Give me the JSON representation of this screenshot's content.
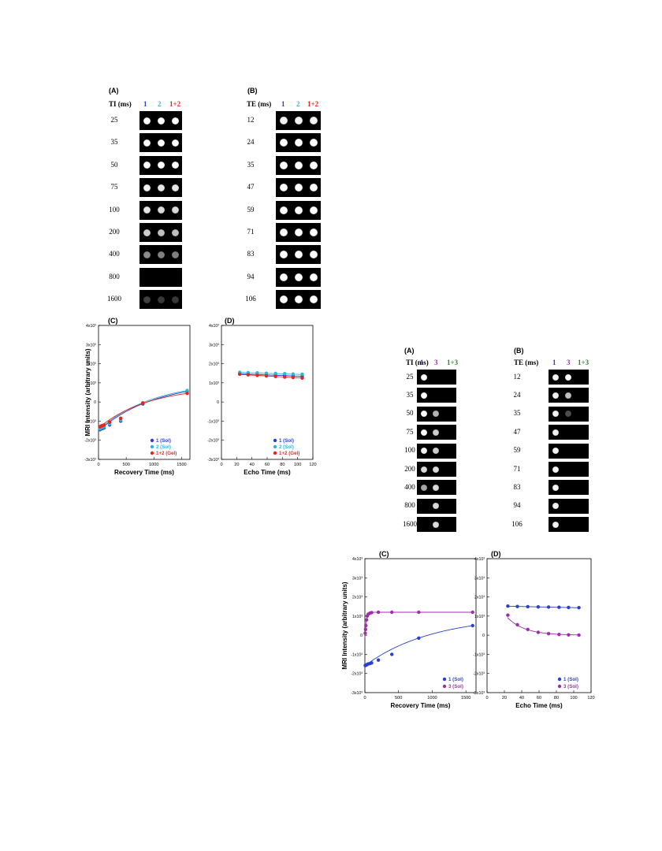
{
  "top_figure": {
    "panel_a": {
      "letter": "(A)",
      "row_header": "TI (ms)",
      "col_labels": [
        "1",
        "2",
        "1+2"
      ],
      "col_colors": [
        "#2b3fd0",
        "#2fb5d8",
        "#e8241c"
      ],
      "rows": [
        "25",
        "35",
        "50",
        "75",
        "100",
        "200",
        "400",
        "800",
        "1600"
      ],
      "spot_intensity": [
        [
          1.0,
          1.0,
          1.0
        ],
        [
          1.0,
          1.0,
          1.0
        ],
        [
          1.0,
          1.0,
          1.0
        ],
        [
          0.95,
          0.9,
          0.9
        ],
        [
          0.9,
          0.85,
          0.85
        ],
        [
          0.8,
          0.75,
          0.75
        ],
        [
          0.55,
          0.5,
          0.5
        ],
        [
          0.0,
          0.0,
          0.0
        ],
        [
          0.25,
          0.22,
          0.22
        ]
      ]
    },
    "panel_b": {
      "letter": "(B)",
      "row_header": "TE (ms)",
      "col_labels": [
        "1",
        "2",
        "1+2"
      ],
      "col_colors": [
        "#2b3fd0",
        "#2fb5d8",
        "#e8241c"
      ],
      "rows": [
        "12",
        "24",
        "35",
        "47",
        "59",
        "71",
        "83",
        "94",
        "106"
      ],
      "spot_intensity": [
        [
          0.95,
          0.95,
          0.95
        ],
        [
          1.0,
          1.0,
          1.0
        ],
        [
          1.0,
          1.0,
          1.0
        ],
        [
          1.0,
          1.0,
          1.0
        ],
        [
          1.0,
          1.0,
          1.0
        ],
        [
          1.0,
          1.0,
          1.0
        ],
        [
          1.0,
          1.0,
          1.0
        ],
        [
          1.0,
          1.0,
          1.0
        ],
        [
          1.0,
          1.0,
          1.0
        ]
      ]
    },
    "panel_c_letter": "(C)",
    "panel_d_letter": "(D)"
  },
  "bottom_figure": {
    "panel_a": {
      "letter": "(A)",
      "row_header": "TI (ms)",
      "col_labels": [
        "1",
        "3",
        "1+3"
      ],
      "col_colors": [
        "#2b3fd0",
        "#9b30a8",
        "#2e8b2e"
      ],
      "rows": [
        "25",
        "35",
        "50",
        "75",
        "100",
        "200",
        "400",
        "800",
        "1600"
      ],
      "spot_intensity": [
        [
          1.0,
          0.0,
          0.0
        ],
        [
          1.0,
          0.0,
          0.0
        ],
        [
          1.0,
          0.7,
          0.0
        ],
        [
          1.0,
          0.8,
          0.0
        ],
        [
          0.95,
          0.8,
          0.0
        ],
        [
          0.85,
          0.85,
          0.0
        ],
        [
          0.65,
          0.85,
          0.0
        ],
        [
          0.0,
          0.85,
          0.0
        ],
        [
          0.0,
          0.85,
          0.0
        ]
      ]
    },
    "panel_b": {
      "letter": "(B)",
      "row_header": "TE (ms)",
      "col_labels": [
        "1",
        "3",
        "1+3"
      ],
      "col_colors": [
        "#2b3fd0",
        "#9b30a8",
        "#2e8b2e"
      ],
      "rows": [
        "12",
        "24",
        "35",
        "47",
        "59",
        "71",
        "83",
        "94",
        "106"
      ],
      "spot_intensity": [
        [
          0.95,
          1.0,
          0.0
        ],
        [
          0.95,
          0.75,
          0.0
        ],
        [
          0.95,
          0.3,
          0.0
        ],
        [
          0.95,
          0.0,
          0.0
        ],
        [
          0.95,
          0.0,
          0.0
        ],
        [
          0.95,
          0.0,
          0.0
        ],
        [
          0.95,
          0.0,
          0.0
        ],
        [
          0.95,
          0.0,
          0.0
        ],
        [
          0.95,
          0.0,
          0.0
        ]
      ]
    },
    "panel_c_letter": "(C)",
    "panel_d_letter": "(D)"
  },
  "chart_data": [
    {
      "id": "top_c",
      "type": "scatter",
      "xlabel": "Recovery Time (ms)",
      "ylabel": "MRI Intensity (arbitrary units)",
      "xlim": [
        0,
        1650
      ],
      "ylim": [
        -3000,
        4000
      ],
      "xticks": [
        0,
        500,
        1000,
        1500
      ],
      "xtick_labels": [
        "0",
        "500",
        "1000",
        "1500"
      ],
      "yticks": [
        -3000,
        -2000,
        -1000,
        0,
        1000,
        2000,
        3000,
        4000
      ],
      "ytick_labels": [
        "-3x10³",
        "-2x10³",
        "-1x10³",
        "0",
        "1x10³",
        "2x10³",
        "3x10³",
        "4x10³"
      ],
      "legend_position": "bottom-right",
      "series": [
        {
          "name": "1 (Sol)",
          "color": "#2b3fd0",
          "x": [
            25,
            35,
            50,
            75,
            100,
            200,
            400,
            800,
            1600
          ],
          "y": [
            -1450,
            -1420,
            -1400,
            -1380,
            -1350,
            -1200,
            -1000,
            -100,
            550
          ],
          "fit": {
            "amp": 3250,
            "t1": 1000
          }
        },
        {
          "name": "2 (Sol)",
          "color": "#2fb5d8",
          "x": [
            25,
            35,
            50,
            75,
            100,
            200,
            400,
            800,
            1600
          ],
          "y": [
            -1400,
            -1380,
            -1350,
            -1330,
            -1300,
            -1150,
            -950,
            -50,
            600
          ],
          "fit": {
            "amp": 3200,
            "t1": 980
          }
        },
        {
          "name": "1+2 (Gel)",
          "color": "#e8241c",
          "x": [
            25,
            35,
            50,
            75,
            100,
            200,
            400,
            800,
            1600
          ],
          "y": [
            -1300,
            -1280,
            -1250,
            -1230,
            -1200,
            -1050,
            -850,
            -50,
            450
          ],
          "fit": {
            "amp": 2900,
            "t1": 900
          }
        }
      ]
    },
    {
      "id": "top_d",
      "type": "scatter",
      "xlabel": "Echo Time (ms)",
      "ylabel": "",
      "xlim": [
        0,
        120
      ],
      "ylim": [
        -3000,
        4000
      ],
      "xticks": [
        0,
        20,
        40,
        60,
        80,
        100,
        120
      ],
      "xtick_labels": [
        "0",
        "20",
        "40",
        "60",
        "80",
        "100",
        "120"
      ],
      "yticks": [
        -3000,
        -2000,
        -1000,
        0,
        1000,
        2000,
        3000,
        4000
      ],
      "ytick_labels": [
        "-3x10³",
        "-2x10³",
        "-1x10³",
        "0",
        "1x10³",
        "2x10³",
        "3x10³",
        "4x10³"
      ],
      "legend_position": "bottom-right",
      "series": [
        {
          "name": "1 (Sol)",
          "color": "#2b3fd0",
          "x": [
            24,
            35,
            47,
            59,
            71,
            83,
            94,
            106
          ],
          "y": [
            1480,
            1460,
            1440,
            1420,
            1400,
            1380,
            1360,
            1340
          ],
          "fit": {
            "amp": 1510,
            "t2": 900
          }
        },
        {
          "name": "2 (Sol)",
          "color": "#2fb5d8",
          "x": [
            24,
            35,
            47,
            59,
            71,
            83,
            94,
            106
          ],
          "y": [
            1550,
            1530,
            1520,
            1500,
            1490,
            1480,
            1460,
            1450
          ],
          "fit": {
            "amp": 1580,
            "t2": 1100
          }
        },
        {
          "name": "1+2 (Gel)",
          "color": "#e8241c",
          "x": [
            24,
            35,
            47,
            59,
            71,
            83,
            94,
            106
          ],
          "y": [
            1450,
            1420,
            1390,
            1360,
            1330,
            1300,
            1280,
            1250
          ],
          "fit": {
            "amp": 1500,
            "t2": 600
          }
        }
      ]
    },
    {
      "id": "bottom_c",
      "type": "scatter",
      "xlabel": "Recovery Time (ms)",
      "ylabel": "MRI Intensity (arbitrary units)",
      "xlim": [
        0,
        1650
      ],
      "ylim": [
        -3000,
        4000
      ],
      "xticks": [
        0,
        500,
        1000,
        1500
      ],
      "xtick_labels": [
        "0",
        "500",
        "1000",
        "1500"
      ],
      "yticks": [
        -3000,
        -2000,
        -1000,
        0,
        1000,
        2000,
        3000,
        4000
      ],
      "ytick_labels": [
        "-3x10³",
        "-2x10³",
        "-1x10³",
        "0",
        "1x10³",
        "2x10³",
        "3x10³",
        "4x10³"
      ],
      "legend_position": "bottom-right",
      "series": [
        {
          "name": "1 (Sol)",
          "color": "#2b3fd0",
          "x": [
            5,
            10,
            15,
            25,
            35,
            50,
            75,
            100,
            200,
            400,
            800,
            1600
          ],
          "y": [
            -1580,
            -1570,
            -1560,
            -1550,
            -1530,
            -1500,
            -1480,
            -1450,
            -1300,
            -1000,
            -150,
            500
          ],
          "fit": {
            "amp": 3300,
            "t1": 1000
          }
        },
        {
          "name": "3 (Sol)",
          "color": "#9b30a8",
          "x": [
            5,
            10,
            15,
            25,
            35,
            50,
            75,
            100,
            200,
            400,
            800,
            1600
          ],
          "y": [
            100,
            300,
            500,
            800,
            1000,
            1100,
            1150,
            1180,
            1200,
            1200,
            1200,
            1200
          ],
          "fit": {
            "amp": 1350,
            "t1": 20,
            "plateau": 1200
          }
        }
      ]
    },
    {
      "id": "bottom_d",
      "type": "scatter",
      "xlabel": "Echo Time (ms)",
      "ylabel": "",
      "xlim": [
        0,
        120
      ],
      "ylim": [
        -3000,
        4000
      ],
      "xticks": [
        0,
        20,
        40,
        60,
        80,
        100,
        120
      ],
      "xtick_labels": [
        "0",
        "20",
        "40",
        "60",
        "80",
        "100",
        "120"
      ],
      "yticks": [
        -3000,
        -2000,
        -1000,
        0,
        1000,
        2000,
        3000,
        4000
      ],
      "ytick_labels": [
        "-3x10³",
        "-2x10³",
        "-1x10³",
        "0",
        "1x10³",
        "2x10³",
        "3x10³",
        "4x10³"
      ],
      "legend_position": "bottom-right",
      "series": [
        {
          "name": "1 (Sol)",
          "color": "#2b3fd0",
          "x": [
            24,
            35,
            47,
            59,
            71,
            83,
            94,
            106
          ],
          "y": [
            1520,
            1500,
            1490,
            1480,
            1470,
            1460,
            1450,
            1440
          ],
          "fit": {
            "amp": 1540,
            "t2": 1500
          }
        },
        {
          "name": "3 (Sol)",
          "color": "#9b30a8",
          "x": [
            24,
            35,
            47,
            59,
            71,
            83,
            94,
            106
          ],
          "y": [
            1050,
            550,
            300,
            150,
            80,
            40,
            20,
            10
          ],
          "fit": {
            "amp": 3000,
            "t2": 20
          }
        }
      ]
    }
  ]
}
